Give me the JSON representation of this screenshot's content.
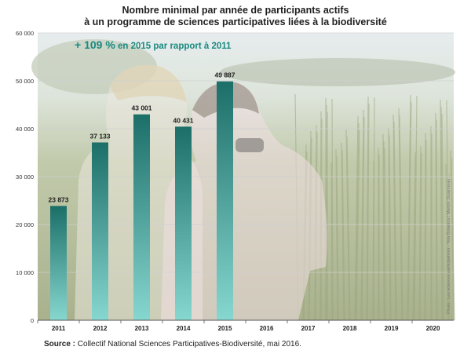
{
  "title_line1": "Nombre minimal  par année de participants actifs",
  "title_line2": "à un programme de sciences participatives liées à la biodiversité",
  "annotation": "+ 109 % en 2015 par rapport à 2011",
  "annotation_main": "+ 109 %",
  "annotation_rest": " en 2015 par rapport à 2011",
  "photo_credit": "Photo : Les sciences participatives - Tela Botanica / Marion Jouanneau ...",
  "source_label": "Source :",
  "source_text": " Collectif National Sciences Participatives-Biodiversité, mai 2016.",
  "colors": {
    "bar_top": "#1c6e68",
    "bar_bottom": "#86d7d0",
    "annotation": "#1a8a80",
    "grid": "#cfcfcf"
  },
  "chart_data": {
    "type": "bar",
    "categories": [
      "2011",
      "2012",
      "2013",
      "2014",
      "2015",
      "2016",
      "2017",
      "2018",
      "2019",
      "2020"
    ],
    "values": [
      23873,
      37133,
      43001,
      40431,
      49887,
      null,
      null,
      null,
      null,
      null
    ],
    "data_labels": [
      "23 873",
      "37 133",
      "43 001",
      "40 431",
      "49 887",
      "",
      "",
      "",
      "",
      ""
    ],
    "ylim": [
      0,
      60000
    ],
    "yticks": [
      0,
      10000,
      20000,
      30000,
      40000,
      50000,
      60000
    ],
    "ytick_labels": [
      "0",
      "10 000",
      "20 000",
      "30 000",
      "40 000",
      "50 000",
      "60 000"
    ],
    "grid": true,
    "xlabel": "",
    "ylabel": ""
  }
}
